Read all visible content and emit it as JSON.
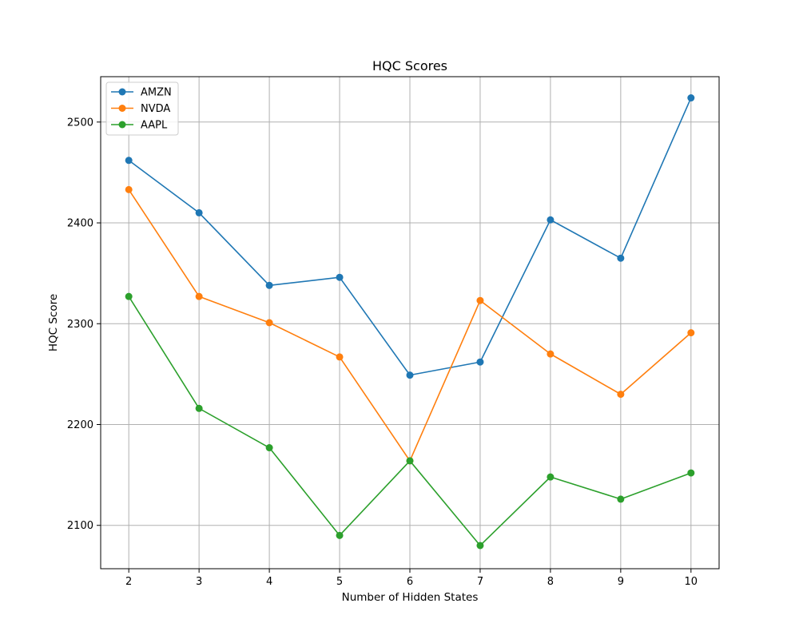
{
  "chart_data": {
    "type": "line",
    "title": "HQC Scores",
    "xlabel": "Number of Hidden States",
    "ylabel": "HQC Score",
    "x": [
      2,
      3,
      4,
      5,
      6,
      7,
      8,
      9,
      10
    ],
    "xlim": [
      1.6,
      10.4
    ],
    "ylim": [
      2057,
      2545
    ],
    "xticks": [
      "2",
      "3",
      "4",
      "5",
      "6",
      "7",
      "8",
      "9",
      "10"
    ],
    "yticks": [
      "2100",
      "2200",
      "2300",
      "2400",
      "2500"
    ],
    "grid": true,
    "legend_position": "top-left",
    "markers": "circle",
    "series": [
      {
        "name": "AMZN",
        "color": "#1f77b4",
        "values": [
          2462,
          2410,
          2338,
          2346,
          2249,
          2262,
          2403,
          2365,
          2524
        ]
      },
      {
        "name": "NVDA",
        "color": "#ff7f0e",
        "values": [
          2433,
          2327,
          2301,
          2267,
          2164,
          2323,
          2270,
          2230,
          2291
        ]
      },
      {
        "name": "AAPL",
        "color": "#2ca02c",
        "values": [
          2327,
          2216,
          2177,
          2090,
          2164,
          2080,
          2148,
          2126,
          2152
        ]
      }
    ]
  }
}
